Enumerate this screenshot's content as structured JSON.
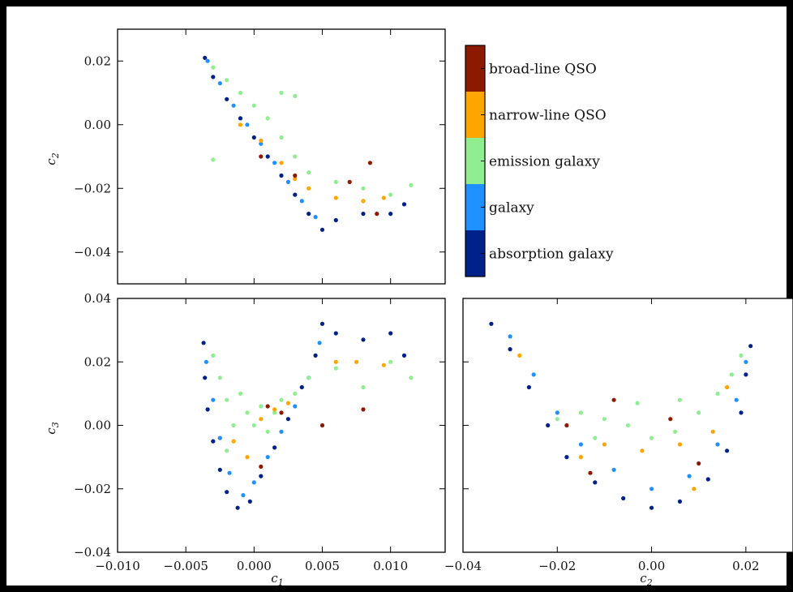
{
  "colors": {
    "broad_line_qso": "#8b1a00",
    "narrow_line_qso": "#ffa500",
    "emission_galaxy": "#90ee90",
    "galaxy": "#1e90ff",
    "absorption_galaxy": "#00208a"
  },
  "chart_data": [
    {
      "type": "scatter",
      "panel": "c1-vs-c2",
      "xlabel": "",
      "ylabel": "c",
      "ylabel_sub": "2",
      "xlim": [
        -0.01,
        0.014
      ],
      "ylim": [
        -0.05,
        0.03
      ],
      "x_ticks": [
        -0.01,
        -0.005,
        0.0,
        0.005,
        0.01
      ],
      "y_ticks": [
        0.02,
        0.0,
        -0.02,
        -0.04
      ],
      "y_tick_labels": [
        "0.02",
        "0.00",
        "−0.02",
        "−0.04"
      ],
      "x_tick_labels_shown": false,
      "series": [
        {
          "class": "absorption_galaxy",
          "points": [
            [
              -0.0036,
              0.021
            ],
            [
              -0.003,
              0.015
            ],
            [
              -0.002,
              0.008
            ],
            [
              -0.001,
              0.002
            ],
            [
              0.0,
              -0.004
            ],
            [
              0.001,
              -0.01
            ],
            [
              0.002,
              -0.016
            ],
            [
              0.003,
              -0.022
            ],
            [
              0.004,
              -0.028
            ],
            [
              0.005,
              -0.033
            ],
            [
              0.006,
              -0.03
            ],
            [
              0.008,
              -0.028
            ],
            [
              0.01,
              -0.028
            ],
            [
              0.011,
              -0.025
            ]
          ]
        },
        {
          "class": "galaxy",
          "points": [
            [
              -0.0034,
              0.02
            ],
            [
              -0.0025,
              0.013
            ],
            [
              -0.0015,
              0.006
            ],
            [
              -0.0005,
              0.0
            ],
            [
              0.0005,
              -0.006
            ],
            [
              0.0015,
              -0.012
            ],
            [
              0.0025,
              -0.018
            ],
            [
              0.0035,
              -0.024
            ],
            [
              0.0045,
              -0.029
            ]
          ]
        },
        {
          "class": "emission_galaxy",
          "points": [
            [
              -0.003,
              0.018
            ],
            [
              -0.002,
              0.014
            ],
            [
              -0.001,
              0.01
            ],
            [
              0.0,
              0.006
            ],
            [
              0.001,
              0.002
            ],
            [
              0.002,
              -0.004
            ],
            [
              0.003,
              -0.01
            ],
            [
              0.004,
              -0.015
            ],
            [
              0.006,
              -0.018
            ],
            [
              0.008,
              -0.02
            ],
            [
              0.01,
              -0.022
            ],
            [
              0.0115,
              -0.019
            ],
            [
              0.003,
              0.009
            ],
            [
              0.002,
              0.01
            ],
            [
              -0.003,
              -0.011
            ]
          ]
        },
        {
          "class": "narrow_line_qso",
          "points": [
            [
              -0.001,
              0.0
            ],
            [
              0.0005,
              -0.005
            ],
            [
              0.002,
              -0.012
            ],
            [
              0.004,
              -0.02
            ],
            [
              0.006,
              -0.023
            ],
            [
              0.008,
              -0.024
            ],
            [
              0.0095,
              -0.023
            ],
            [
              0.003,
              -0.017
            ]
          ]
        },
        {
          "class": "broad_line_qso",
          "points": [
            [
              0.0005,
              -0.01
            ],
            [
              0.003,
              -0.016
            ],
            [
              0.007,
              -0.018
            ],
            [
              0.009,
              -0.028
            ],
            [
              0.0085,
              -0.012
            ]
          ]
        }
      ]
    },
    {
      "type": "scatter",
      "panel": "c1-vs-c3",
      "xlabel": "c",
      "xlabel_sub": "1",
      "ylabel": "c",
      "ylabel_sub": "3",
      "xlim": [
        -0.01,
        0.014
      ],
      "ylim": [
        -0.04,
        0.04
      ],
      "x_ticks": [
        -0.01,
        -0.005,
        0.0,
        0.005,
        0.01
      ],
      "x_tick_labels": [
        "−0.010",
        "−0.005",
        "0.000",
        "0.005",
        "0.010"
      ],
      "y_ticks": [
        0.04,
        0.02,
        0.0,
        -0.02,
        -0.04
      ],
      "y_tick_labels": [
        "0.04",
        "0.02",
        "0.00",
        "−0.02",
        "−0.04"
      ],
      "series": [
        {
          "class": "absorption_galaxy",
          "points": [
            [
              -0.0037,
              0.026
            ],
            [
              -0.0036,
              0.015
            ],
            [
              -0.0034,
              0.005
            ],
            [
              -0.003,
              -0.005
            ],
            [
              -0.0025,
              -0.014
            ],
            [
              -0.002,
              -0.021
            ],
            [
              -0.0012,
              -0.026
            ],
            [
              -0.0003,
              -0.024
            ],
            [
              0.0005,
              -0.016
            ],
            [
              0.0015,
              -0.007
            ],
            [
              0.0025,
              0.002
            ],
            [
              0.0035,
              0.012
            ],
            [
              0.0045,
              0.022
            ],
            [
              0.005,
              0.032
            ],
            [
              0.006,
              0.029
            ],
            [
              0.008,
              0.027
            ],
            [
              0.01,
              0.029
            ],
            [
              0.011,
              0.022
            ]
          ]
        },
        {
          "class": "galaxy",
          "points": [
            [
              -0.0035,
              0.02
            ],
            [
              -0.003,
              0.008
            ],
            [
              -0.0025,
              -0.004
            ],
            [
              -0.0018,
              -0.015
            ],
            [
              -0.0008,
              -0.022
            ],
            [
              0.0,
              -0.018
            ],
            [
              0.001,
              -0.01
            ],
            [
              0.002,
              -0.002
            ],
            [
              0.003,
              0.006
            ],
            [
              0.004,
              0.015
            ],
            [
              0.0048,
              0.026
            ]
          ]
        },
        {
          "class": "emission_galaxy",
          "points": [
            [
              -0.003,
              0.022
            ],
            [
              -0.0025,
              0.015
            ],
            [
              -0.002,
              0.008
            ],
            [
              -0.0015,
              0.0
            ],
            [
              -0.001,
              0.01
            ],
            [
              -0.0005,
              0.004
            ],
            [
              0.0,
              0.0
            ],
            [
              0.0005,
              0.006
            ],
            [
              0.001,
              -0.002
            ],
            [
              0.0015,
              0.004
            ],
            [
              0.002,
              0.008
            ],
            [
              0.003,
              0.01
            ],
            [
              0.004,
              0.015
            ],
            [
              0.006,
              0.018
            ],
            [
              0.008,
              0.012
            ],
            [
              0.01,
              0.02
            ],
            [
              0.0115,
              0.015
            ],
            [
              -0.002,
              -0.008
            ]
          ]
        },
        {
          "class": "narrow_line_qso",
          "points": [
            [
              -0.0015,
              -0.005
            ],
            [
              -0.0005,
              -0.01
            ],
            [
              0.0005,
              0.002
            ],
            [
              0.0015,
              0.005
            ],
            [
              0.0025,
              0.007
            ],
            [
              0.006,
              0.02
            ],
            [
              0.0075,
              0.02
            ],
            [
              0.0095,
              0.019
            ]
          ]
        },
        {
          "class": "broad_line_qso",
          "points": [
            [
              0.001,
              0.006
            ],
            [
              0.002,
              0.004
            ],
            [
              0.005,
              0.0
            ],
            [
              0.008,
              0.005
            ],
            [
              0.0005,
              -0.013
            ]
          ]
        }
      ]
    },
    {
      "type": "scatter",
      "panel": "c2-vs-c3",
      "xlabel": "c",
      "xlabel_sub": "2",
      "ylabel": "",
      "xlim": [
        -0.04,
        0.03
      ],
      "ylim": [
        -0.04,
        0.04
      ],
      "x_ticks": [
        -0.04,
        -0.02,
        0.0,
        0.02
      ],
      "x_tick_labels": [
        "−0.04",
        "−0.02",
        "0.00",
        "0.02"
      ],
      "y_tick_labels_shown": false,
      "series": [
        {
          "class": "absorption_galaxy",
          "points": [
            [
              -0.034,
              0.032
            ],
            [
              -0.03,
              0.024
            ],
            [
              -0.026,
              0.012
            ],
            [
              -0.022,
              0.0
            ],
            [
              -0.018,
              -0.01
            ],
            [
              -0.012,
              -0.018
            ],
            [
              -0.006,
              -0.023
            ],
            [
              0.0,
              -0.026
            ],
            [
              0.006,
              -0.024
            ],
            [
              0.012,
              -0.017
            ],
            [
              0.016,
              -0.008
            ],
            [
              0.019,
              0.004
            ],
            [
              0.02,
              0.016
            ],
            [
              0.021,
              0.025
            ]
          ]
        },
        {
          "class": "galaxy",
          "points": [
            [
              -0.03,
              0.028
            ],
            [
              -0.025,
              0.016
            ],
            [
              -0.02,
              0.004
            ],
            [
              -0.015,
              -0.006
            ],
            [
              -0.008,
              -0.014
            ],
            [
              0.0,
              -0.02
            ],
            [
              0.008,
              -0.016
            ],
            [
              0.014,
              -0.006
            ],
            [
              0.018,
              0.008
            ],
            [
              0.02,
              0.02
            ]
          ]
        },
        {
          "class": "emission_galaxy",
          "points": [
            [
              -0.02,
              0.002
            ],
            [
              -0.015,
              0.004
            ],
            [
              -0.01,
              0.002
            ],
            [
              -0.005,
              0.0
            ],
            [
              0.0,
              -0.004
            ],
            [
              0.005,
              -0.002
            ],
            [
              0.01,
              0.004
            ],
            [
              0.014,
              0.01
            ],
            [
              0.017,
              0.016
            ],
            [
              0.019,
              0.022
            ],
            [
              -0.003,
              0.007
            ],
            [
              0.006,
              0.008
            ],
            [
              -0.012,
              -0.004
            ]
          ]
        },
        {
          "class": "narrow_line_qso",
          "points": [
            [
              -0.028,
              0.022
            ],
            [
              -0.015,
              -0.01
            ],
            [
              -0.01,
              -0.006
            ],
            [
              -0.002,
              -0.008
            ],
            [
              0.006,
              -0.006
            ],
            [
              0.013,
              -0.002
            ],
            [
              0.016,
              0.012
            ],
            [
              0.009,
              -0.02
            ]
          ]
        },
        {
          "class": "broad_line_qso",
          "points": [
            [
              -0.018,
              0.0
            ],
            [
              -0.008,
              0.008
            ],
            [
              0.004,
              0.002
            ],
            [
              -0.013,
              -0.015
            ],
            [
              0.01,
              -0.012
            ]
          ]
        }
      ]
    }
  ],
  "legend": {
    "items": [
      {
        "label": "broad-line QSO",
        "color": "#8b1a00"
      },
      {
        "label": "narrow-line QSO",
        "color": "#ffa500"
      },
      {
        "label": "emission galaxy",
        "color": "#90ee90"
      },
      {
        "label": "galaxy",
        "color": "#1e90ff"
      },
      {
        "label": "absorption galaxy",
        "color": "#00208a"
      }
    ]
  }
}
